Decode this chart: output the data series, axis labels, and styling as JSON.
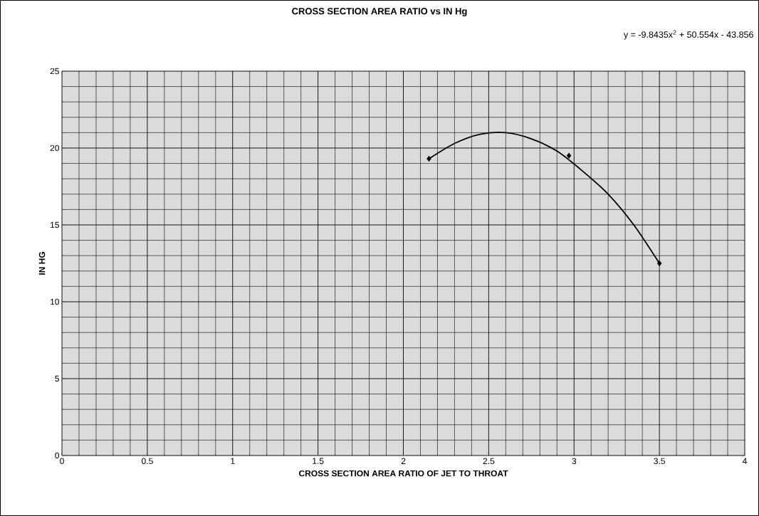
{
  "chart_data": {
    "type": "scatter",
    "title": "CROSS SECTION AREA RATIO vs IN Hg",
    "xlabel": "CROSS SECTION AREA RATIO OF JET TO THROAT",
    "ylabel": "IN HG",
    "annotations": [
      "y = -9.8435x$^{2}$ + 50.554x - 43.856"
    ],
    "series": [
      {
        "color": "#000000",
        "marker": "diamond",
        "x": [
          2.15,
          2.97,
          3.5
        ],
        "values": [
          19.3,
          19.5,
          12.5
        ]
      },
      {
        "type": "line",
        "color": "#000000",
        "marker": "none",
        "line_style": "solid",
        "x": [
          2.15,
          2.3,
          2.45,
          2.6,
          2.75,
          2.9,
          3.05,
          3.2,
          3.35,
          3.5
        ],
        "values": [
          19.3,
          20.3,
          20.9,
          21.0,
          20.6,
          19.8,
          18.5,
          17.0,
          15.0,
          12.5
        ]
      }
    ],
    "xlim": [
      0,
      4
    ],
    "ylim": [
      0,
      25
    ],
    "xticks": [
      0,
      0.5,
      1,
      1.5,
      2,
      2.5,
      3,
      3.5,
      4
    ],
    "yticks": [
      0,
      5,
      10,
      15,
      20,
      25
    ],
    "grid": true
  }
}
